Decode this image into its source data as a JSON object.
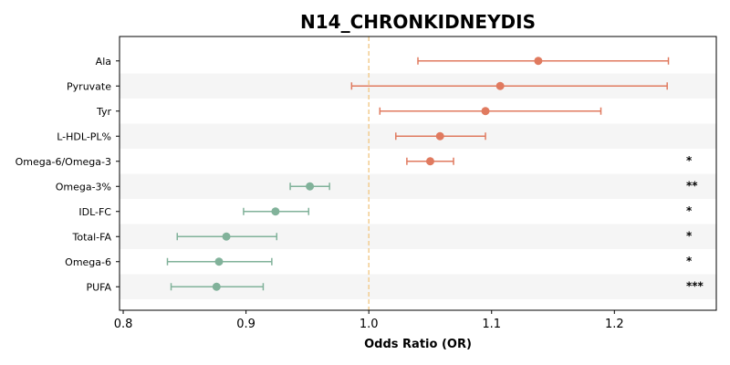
{
  "chart_data": {
    "type": "scatter",
    "title": "N14_CHRONKIDNEYDIS",
    "xlabel": "Odds Ratio (OR)",
    "ylabel": "",
    "xlim": [
      0.797,
      1.283
    ],
    "xticks": [
      "0.8",
      "0.9",
      "1.0",
      "1.1",
      "1.2"
    ],
    "reference_line": 1.0,
    "colors": {
      "risk": "#e07a5f",
      "protective": "#81b29a",
      "reference": "#f2cc8f",
      "band": "#f5f5f5"
    },
    "points": [
      {
        "label": "Ala",
        "or": 1.138,
        "lo": 1.04,
        "hi": 1.244,
        "sig": "",
        "group": "risk"
      },
      {
        "label": "Pyruvate",
        "or": 1.107,
        "lo": 0.986,
        "hi": 1.243,
        "sig": "",
        "group": "risk"
      },
      {
        "label": "Tyr",
        "or": 1.095,
        "lo": 1.009,
        "hi": 1.189,
        "sig": "",
        "group": "risk"
      },
      {
        "label": "L-HDL-PL%",
        "or": 1.058,
        "lo": 1.022,
        "hi": 1.095,
        "sig": "",
        "group": "risk"
      },
      {
        "label": "Omega-6/Omega-3",
        "or": 1.05,
        "lo": 1.031,
        "hi": 1.069,
        "sig": "*",
        "group": "risk"
      },
      {
        "label": "Omega-3%",
        "or": 0.952,
        "lo": 0.936,
        "hi": 0.968,
        "sig": "**",
        "group": "protective"
      },
      {
        "label": "IDL-FC",
        "or": 0.924,
        "lo": 0.898,
        "hi": 0.951,
        "sig": "*",
        "group": "protective"
      },
      {
        "label": "Total-FA",
        "or": 0.884,
        "lo": 0.844,
        "hi": 0.925,
        "sig": "*",
        "group": "protective"
      },
      {
        "label": "Omega-6",
        "or": 0.878,
        "lo": 0.836,
        "hi": 0.921,
        "sig": "*",
        "group": "protective"
      },
      {
        "label": "PUFA",
        "or": 0.876,
        "lo": 0.839,
        "hi": 0.914,
        "sig": "***",
        "group": "protective"
      }
    ]
  }
}
